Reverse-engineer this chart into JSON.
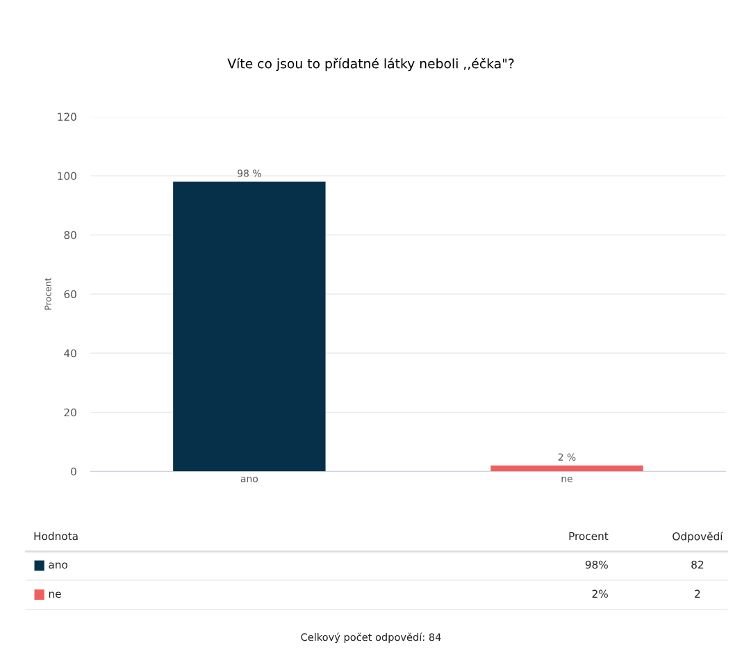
{
  "chart_data": {
    "type": "bar",
    "title": "Víte co jsou to přídatné látky neboli ,,éčka\"?",
    "ylabel": "Procent",
    "categories": [
      "ano",
      "ne"
    ],
    "values": [
      98,
      2
    ],
    "colors": [
      "#06304a",
      "#f05f5f"
    ],
    "value_labels": [
      "98 %",
      "2 %"
    ],
    "ylim": [
      0,
      120
    ],
    "yticks": [
      0,
      20,
      40,
      60,
      80,
      100,
      120
    ],
    "grid": "y",
    "annotations": [
      "Hodnota",
      "Procent",
      "Odpovědí",
      "ano",
      "98%",
      "82",
      "ne",
      "2%",
      "2",
      "Celkový počet odpovědí: 84"
    ]
  }
}
